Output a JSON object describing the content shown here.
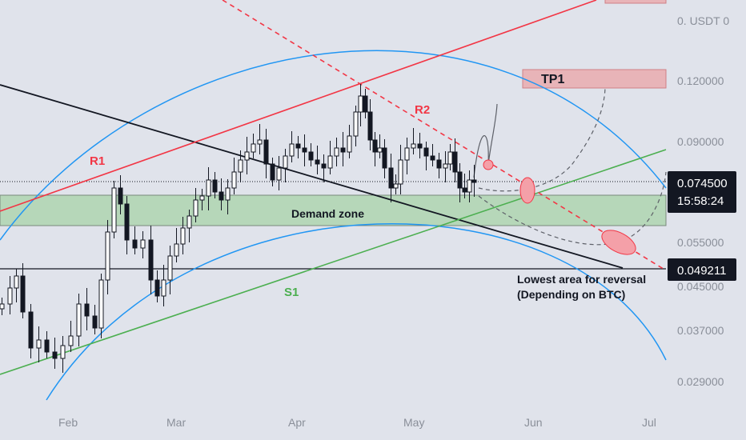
{
  "chart_data": {
    "type": "candlestick",
    "x_months": [
      "Feb",
      "Mar",
      "Apr",
      "May",
      "Jun",
      "Jul"
    ],
    "y_ticks": [
      "0.120000",
      "0.090000",
      "0.055000",
      "0.045000",
      "0.037000",
      "0.029000"
    ],
    "y_axis_top_label": "0. USDT 0",
    "last_price": "0.074500",
    "countdown": "15:58:24",
    "reversal_price": "0.049211",
    "demand_zone": {
      "label": "Demand zone",
      "low": 0.06,
      "high": 0.074
    },
    "tp1": {
      "label": "TP1",
      "price": 0.12
    },
    "annotations": {
      "r1": "R1",
      "r2": "R2",
      "s1": "S1",
      "reversal_line1": "Lowest area for reversal",
      "reversal_line2": "(Depending on BTC)"
    },
    "colors": {
      "background": "#e0e3eb",
      "bull": "#ffffff",
      "bear": "#131722",
      "resistance": "#f23645",
      "support": "#4caf50",
      "curve": "#2196f3",
      "zone": "#b6d7b9",
      "tp_box": "#e8b4b8",
      "tag": "#131722"
    },
    "grid": false
  }
}
